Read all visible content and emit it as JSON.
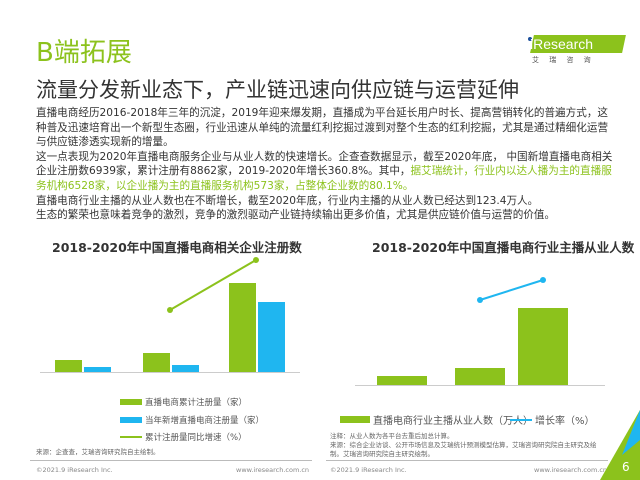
{
  "header": {
    "title": "B端拓展",
    "subtitle": "流量分发新业态下，产业链迅速向供应链与运营延伸",
    "logo": {
      "text": "iResearch",
      "cn": "艾 瑞 咨 询"
    }
  },
  "body": {
    "p1": "直播电商经历2016-2018年三年的沉淀，2019年迎来爆发期，直播成为平台延长用户时长、提高营销转化的普遍方式，这种普及迅速培育出一个新型生态圈，行业迅速从单纯的流量红利挖掘过渡到对整个生态的红利挖掘，尤其是通过精细化运营与供应链渗透实现新的增量。",
    "p2a": "这一点表现为2020年直播电商服务企业与从业人数的快速增长。企查查数据显示，截至2020年底， 中国新增直播电商相关企业注册数6939家，累计注册有8862家，2019-2020年增长360.8%。其中，",
    "p2b": "据艾瑞统计，行业内以达人播为主的直播服务机构6528家，以企业播为主的直播服务机构573家，占整体企业数的80.1%。",
    "p3": "直播电商行业主播的从业人数也在不断增长，截至2020年底，行业内主播的从业人数已经达到123.4万人。",
    "p4": "生态的繁荣也意味着竞争的激烈，竞争的激烈驱动产业链持续输出更多价值，尤其是供应链价值与运营的价值。"
  },
  "colors": {
    "green": "#8cc21c",
    "blue": "#1fb6f0",
    "line_green": "#8cc21c",
    "line_blue": "#1fb6f0"
  },
  "chart_data": [
    {
      "type": "bar",
      "title": "2018-2020年中国直播电商相关企业注册数",
      "categories": [
        "2018",
        "2019",
        "2020"
      ],
      "series": [
        {
          "name": "直播电商累计注册量（家）",
          "values": [
            1242,
            1923,
            8862
          ],
          "labels": [
            "1242",
            "1923",
            "8862"
          ]
        },
        {
          "name": "当年新增直播电商注册量（家）",
          "values": [
            461,
            681,
            6939
          ],
          "labels": [
            "461",
            "681",
            "6939"
          ]
        },
        {
          "name": "累计注册量同比增速（%）",
          "type": "line",
          "values": [
            null,
            54.8,
            360.8
          ],
          "labels": [
            "",
            "54.8%",
            "360.8%"
          ]
        }
      ],
      "source": "来源：企查查，艾瑞咨询研究院自主绘制。"
    },
    {
      "type": "bar",
      "title": "2018-2020年中国直播电商行业主播从业人数",
      "categories": [
        "2018",
        "2019",
        "2020"
      ],
      "series": [
        {
          "name": "直播电商行业主播从业人数（万人）",
          "values": [
            14.9,
            27.5,
            123.4
          ],
          "labels": [
            "14.9",
            "27.5",
            "123.4"
          ]
        },
        {
          "name": "增长率（%）",
          "type": "line",
          "values": [
            null,
            84.5,
            348.8
          ],
          "labels": [
            "",
            "84.5%",
            "348.8%"
          ]
        }
      ],
      "note": "注释：从业人数为各平台去重后加总计算。",
      "source": "来源：综合企业访谈、公开市场信息及艾瑞统计预测模型估算，艾瑞咨询研究院自主研究及绘制。艾瑞咨询研究院自主研究绘制。"
    }
  ],
  "footer": {
    "copyright": "©2021.9 iResearch Inc.",
    "url": "www.iresearch.com.cn",
    "page": "6"
  }
}
